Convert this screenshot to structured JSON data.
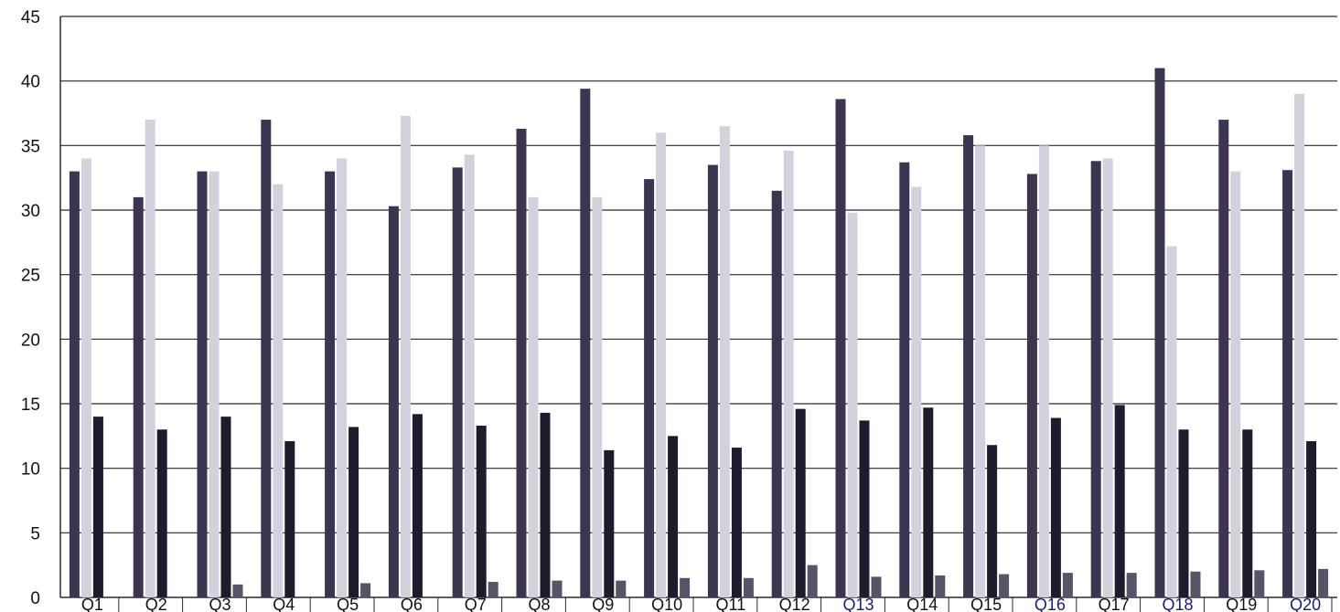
{
  "chart_data": {
    "type": "bar",
    "title": "",
    "xlabel": "",
    "ylabel": "",
    "ylim": [
      0,
      45
    ],
    "yticks": [
      0,
      5,
      10,
      15,
      20,
      25,
      30,
      35,
      40,
      45
    ],
    "grid": true,
    "legend": "none",
    "categories": [
      "Q1",
      "Q2",
      "Q3",
      "Q4",
      "Q5",
      "Q6",
      "Q7",
      "Q8",
      "Q9",
      "Q10",
      "Q11",
      "Q12",
      "Q13",
      "Q14",
      "Q15",
      "Q16",
      "Q17",
      "Q18",
      "Q19",
      "Q20"
    ],
    "series": [
      {
        "values": [
          33,
          31,
          33,
          37,
          33,
          30.3,
          33.3,
          36.3,
          39.4,
          32.4,
          33.5,
          31.5,
          38.6,
          33.7,
          35.8,
          32.8,
          33.8,
          41,
          37,
          33.1
        ],
        "color": "#3d3550"
      },
      {
        "values": [
          34,
          37,
          33,
          32,
          34,
          37.3,
          34.3,
          31,
          31,
          36,
          36.5,
          34.6,
          29.8,
          31.8,
          35,
          35,
          34,
          27.2,
          33,
          39
        ],
        "color": "#d2d2dc"
      },
      {
        "values": [
          14,
          13,
          14,
          12.1,
          13.2,
          14.2,
          13.3,
          14.3,
          11.4,
          12.5,
          11.6,
          14.6,
          13.7,
          14.7,
          11.8,
          13.9,
          14.9,
          13,
          13,
          12.1
        ],
        "color": "#1f1a2c"
      },
      {
        "values": [
          0,
          0,
          1,
          0,
          1.1,
          0,
          1.2,
          1.3,
          1.3,
          1.5,
          1.5,
          2.5,
          1.6,
          1.7,
          1.8,
          1.9,
          1.9,
          2,
          2.1,
          2.2
        ],
        "color": "#565466"
      }
    ],
    "highlight_color": "#1c1c6e",
    "highlighted_categories": [
      "Q13",
      "Q16",
      "Q18",
      "Q20"
    ]
  }
}
